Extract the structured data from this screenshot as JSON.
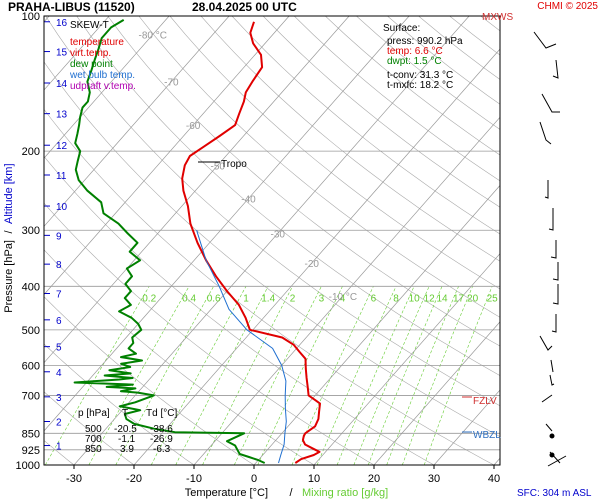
{
  "header": {
    "title": "PRAHA-LIBUS (11520)",
    "datetime": "28.04.2025 00 UTC",
    "copyright": "CHMI © 2025"
  },
  "colors": {
    "temperature": "#e00000",
    "virt_temp": "#e00000",
    "dew_point": "#008000",
    "wet_bulb": "#1f6fd0",
    "updraft": "#b000b0",
    "dry_adiabat": "#aaaaaa",
    "mixing_ratio": "#66cc33",
    "isobar": "#999999",
    "level_label": "#d03030",
    "wbzl_label": "#3070c0",
    "altitude": "#0000cc"
  },
  "legend": {
    "title": "SKEW-T",
    "items": [
      {
        "label": "temperature",
        "color": "#e00000"
      },
      {
        "label": "virt.temp.",
        "color": "#e00000"
      },
      {
        "label": "dew point",
        "color": "#008000"
      },
      {
        "label": "wet bulb temp.",
        "color": "#1f6fd0"
      },
      {
        "label": "udpraft v.temp.",
        "color": "#b000b0"
      }
    ]
  },
  "surface_box": {
    "title": "Surface:",
    "press": "press: 990.2 hPa",
    "temp": "temp: 6.6 °C",
    "dwpt": "dwpt: 1.5 °C",
    "tconv": "t-conv: 31.3 °C",
    "tmxfc": "t-mxfc: 18.2 °C"
  },
  "table": {
    "header": [
      "p [hPa]",
      "T",
      "Td [°C]"
    ],
    "rows": [
      [
        "500",
        "-20.5",
        "-38.6"
      ],
      [
        "700",
        "-1.1",
        "-26.9"
      ],
      [
        "850",
        "3.9",
        "-6.3"
      ]
    ]
  },
  "annotations": {
    "tropo": "Tropo",
    "mxws": "MXWS",
    "fzlv": "FZLV",
    "wbzl": "WBZL",
    "sfc": "SFC: 304 m ASL"
  },
  "chart_data": {
    "type": "line",
    "title": "PRAHA-LIBUS (11520)    28.04.2025 00 UTC",
    "xlabel_parts": [
      "Temperature [°C]",
      "/",
      "Mixing ratio [g/kg]"
    ],
    "ylabel_parts": [
      "Pressure [hPa]",
      "/",
      "Altitude [km]"
    ],
    "x_ticks": [
      -30,
      -20,
      -10,
      0,
      10,
      20,
      30,
      40
    ],
    "x_range": [
      -35,
      41
    ],
    "y_range": [
      1000,
      100
    ],
    "pressure_ticks": [
      100,
      200,
      300,
      400,
      500,
      600,
      700,
      850,
      925,
      1000
    ],
    "altitude_ticks": [
      {
        "km": 1,
        "p": 905
      },
      {
        "km": 2,
        "p": 800
      },
      {
        "km": 3,
        "p": 705
      },
      {
        "km": 4,
        "p": 620
      },
      {
        "km": 5,
        "p": 545
      },
      {
        "km": 6,
        "p": 475
      },
      {
        "km": 7,
        "p": 415
      },
      {
        "km": 8,
        "p": 357
      },
      {
        "km": 9,
        "p": 308
      },
      {
        "km": 10,
        "p": 265
      },
      {
        "km": 11,
        "p": 226
      },
      {
        "km": 12,
        "p": 194
      },
      {
        "km": 13,
        "p": 165
      },
      {
        "km": 14,
        "p": 141
      },
      {
        "km": 15,
        "p": 120
      },
      {
        "km": 16,
        "p": 103
      }
    ],
    "isotherm_labels": [
      {
        "t": -80,
        "p": 110,
        "text": "-80 °C"
      },
      {
        "t": -70,
        "p": 140,
        "text": "-70"
      },
      {
        "t": -60,
        "p": 175,
        "text": "-60"
      },
      {
        "t": -50,
        "p": 215,
        "text": "-50"
      },
      {
        "t": -40,
        "p": 255,
        "text": "-40"
      },
      {
        "t": -30,
        "p": 305,
        "text": "-30"
      },
      {
        "t": -20,
        "p": 355,
        "text": "-20"
      },
      {
        "t": -10,
        "p": 420,
        "text": "-10 °C"
      }
    ],
    "mixing_ratio_labels": [
      "0.2",
      "0.4",
      "0.6",
      "1",
      "1.4",
      "2",
      "3",
      "4",
      "6",
      "8",
      "10",
      "12",
      "14",
      "17",
      "20",
      "25"
    ],
    "tropopause_p": 208,
    "series": [
      {
        "name": "temperature",
        "color": "#e00000",
        "points": [
          [
            6.6,
            990
          ],
          [
            7,
            970
          ],
          [
            8.5,
            950
          ],
          [
            9,
            935
          ],
          [
            8,
            925
          ],
          [
            7,
            915
          ],
          [
            5.5,
            900
          ],
          [
            4.5,
            880
          ],
          [
            4,
            860
          ],
          [
            3.9,
            850
          ],
          [
            4.5,
            820
          ],
          [
            4,
            790
          ],
          [
            3,
            760
          ],
          [
            2,
            730
          ],
          [
            1,
            720
          ],
          [
            -1.1,
            700
          ],
          [
            -2.5,
            670
          ],
          [
            -4,
            640
          ],
          [
            -5.5,
            610
          ],
          [
            -7,
            580
          ],
          [
            -9,
            560
          ],
          [
            -11,
            540
          ],
          [
            -14,
            520
          ],
          [
            -20.5,
            500
          ],
          [
            -23,
            470
          ],
          [
            -26,
            440
          ],
          [
            -30,
            410
          ],
          [
            -34,
            380
          ],
          [
            -38,
            350
          ],
          [
            -42,
            320
          ],
          [
            -46,
            290
          ],
          [
            -49,
            265
          ],
          [
            -52,
            245
          ],
          [
            -54,
            230
          ],
          [
            -55.5,
            215
          ],
          [
            -56,
            205
          ],
          [
            -55,
            195
          ],
          [
            -54,
            185
          ],
          [
            -53,
            175
          ],
          [
            -54,
            165
          ],
          [
            -55,
            155
          ],
          [
            -56,
            148
          ],
          [
            -56.5,
            140
          ],
          [
            -57,
            130
          ],
          [
            -59,
            122
          ],
          [
            -62,
            115
          ],
          [
            -64,
            109
          ],
          [
            -65,
            103
          ]
        ]
      },
      {
        "name": "dew point",
        "color": "#008000",
        "points": [
          [
            1.5,
            990
          ],
          [
            0,
            975
          ],
          [
            -2,
            960
          ],
          [
            -4,
            945
          ],
          [
            -5,
            925
          ],
          [
            -6,
            905
          ],
          [
            -8,
            885
          ],
          [
            -6.3,
            850
          ],
          [
            -18,
            845
          ],
          [
            -22,
            830
          ],
          [
            -26,
            810
          ],
          [
            -28,
            790
          ],
          [
            -29,
            770
          ],
          [
            -27,
            755
          ],
          [
            -31,
            740
          ],
          [
            -29,
            725
          ],
          [
            -26.9,
            700
          ],
          [
            -30,
            690
          ],
          [
            -33,
            685
          ],
          [
            -31,
            675
          ],
          [
            -36,
            670
          ],
          [
            -32,
            662
          ],
          [
            -42,
            655
          ],
          [
            -35,
            645
          ],
          [
            -33,
            640
          ],
          [
            -38,
            632
          ],
          [
            -34,
            625
          ],
          [
            -38,
            615
          ],
          [
            -35,
            605
          ],
          [
            -37,
            595
          ],
          [
            -34,
            585
          ],
          [
            -38,
            575
          ],
          [
            -36,
            565
          ],
          [
            -38,
            550
          ],
          [
            -38,
            535
          ],
          [
            -39,
            520
          ],
          [
            -38.6,
            500
          ],
          [
            -40,
            485
          ],
          [
            -42,
            470
          ],
          [
            -45,
            455
          ],
          [
            -44,
            440
          ],
          [
            -46,
            425
          ],
          [
            -46,
            410
          ],
          [
            -48,
            395
          ],
          [
            -48,
            380
          ],
          [
            -50,
            365
          ],
          [
            -49,
            350
          ],
          [
            -52,
            335
          ],
          [
            -52,
            320
          ],
          [
            -55,
            305
          ],
          [
            -58,
            290
          ],
          [
            -62,
            275
          ],
          [
            -64,
            260
          ],
          [
            -68,
            245
          ],
          [
            -71,
            232
          ],
          [
            -73,
            220
          ],
          [
            -74,
            210
          ],
          [
            -75,
            200
          ],
          [
            -77,
            192
          ],
          [
            -78,
            183
          ],
          [
            -79,
            175
          ],
          [
            -80,
            168
          ],
          [
            -81,
            160
          ],
          [
            -81,
            155
          ],
          [
            -82,
            148
          ],
          [
            -84,
            140
          ],
          [
            -85,
            132
          ],
          [
            -86,
            125
          ],
          [
            -87,
            118
          ],
          [
            -88,
            112
          ],
          [
            -88,
            106
          ],
          [
            -87,
            102
          ]
        ]
      },
      {
        "name": "wet bulb temp.",
        "color": "#1f6fd0",
        "points": [
          [
            3.8,
            990
          ],
          [
            3,
            950
          ],
          [
            2,
            900
          ],
          [
            0.5,
            850
          ],
          [
            -1,
            800
          ],
          [
            -3,
            750
          ],
          [
            -5,
            700
          ],
          [
            -7,
            650
          ],
          [
            -10,
            600
          ],
          [
            -14,
            550
          ],
          [
            -21,
            500
          ],
          [
            -27,
            450
          ],
          [
            -32,
            400
          ],
          [
            -38,
            350
          ],
          [
            -44,
            300
          ]
        ]
      }
    ]
  }
}
